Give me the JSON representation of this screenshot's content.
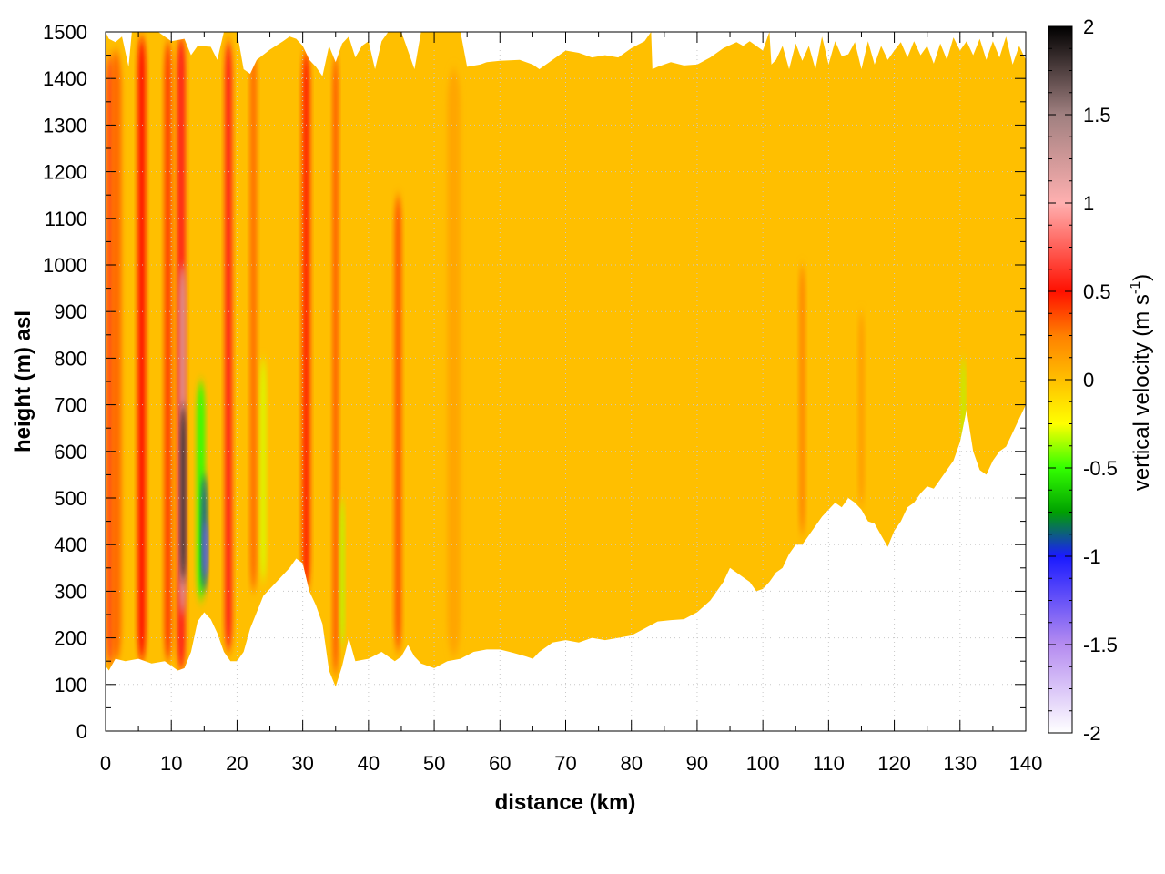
{
  "chart_data": {
    "type": "heatmap",
    "title": "",
    "xlabel": "distance (km)",
    "ylabel": "height (m) asl",
    "xlim": [
      0,
      140
    ],
    "ylim": [
      0,
      1500
    ],
    "x_ticks": [
      "0",
      "10",
      "20",
      "30",
      "40",
      "50",
      "60",
      "70",
      "80",
      "90",
      "100",
      "110",
      "120",
      "130",
      "140"
    ],
    "y_ticks": [
      "0",
      "100",
      "200",
      "300",
      "400",
      "500",
      "600",
      "700",
      "800",
      "900",
      "1000",
      "1100",
      "1200",
      "1300",
      "1400",
      "1500"
    ],
    "grid": true,
    "colorbar": {
      "label_prefix": "vertical velocity (m s",
      "label_sup": "-1",
      "label_suffix": ")",
      "range": [
        -2,
        2
      ],
      "tick_labels": [
        "2",
        "1.5",
        "1",
        "0.5",
        "0",
        "-0.5",
        "-1",
        "-1.5",
        "-2"
      ],
      "colors": [
        {
          "v": -2.0,
          "c": "#ffffff"
        },
        {
          "v": -1.5,
          "c": "#b58cf0"
        },
        {
          "v": -1.0,
          "c": "#1a1aff"
        },
        {
          "v": -0.75,
          "c": "#00a000"
        },
        {
          "v": -0.5,
          "c": "#33ff00"
        },
        {
          "v": -0.25,
          "c": "#ffff00"
        },
        {
          "v": 0.0,
          "c": "#ffbf00"
        },
        {
          "v": 0.25,
          "c": "#ff8000"
        },
        {
          "v": 0.5,
          "c": "#ff1000"
        },
        {
          "v": 1.0,
          "c": "#ffb0b0"
        },
        {
          "v": 1.5,
          "c": "#a08080"
        },
        {
          "v": 2.0,
          "c": "#000000"
        }
      ]
    },
    "field_top": [
      [
        0,
        1500
      ],
      [
        0.5,
        1485
      ],
      [
        1.5,
        1478
      ],
      [
        2.5,
        1490
      ],
      [
        3.5,
        1425
      ],
      [
        4,
        1500
      ],
      [
        8,
        1500
      ],
      [
        10,
        1480
      ],
      [
        12,
        1485
      ],
      [
        13,
        1450
      ],
      [
        14,
        1470
      ],
      [
        16,
        1468
      ],
      [
        17,
        1440
      ],
      [
        18,
        1500
      ],
      [
        20,
        1500
      ],
      [
        21,
        1420
      ],
      [
        22,
        1410
      ],
      [
        23,
        1440
      ],
      [
        25,
        1462
      ],
      [
        27,
        1480
      ],
      [
        28,
        1490
      ],
      [
        29,
        1485
      ],
      [
        30,
        1470
      ],
      [
        31,
        1440
      ],
      [
        32,
        1425
      ],
      [
        33,
        1405
      ],
      [
        34,
        1470
      ],
      [
        35,
        1435
      ],
      [
        36,
        1475
      ],
      [
        37,
        1490
      ],
      [
        38,
        1445
      ],
      [
        39,
        1470
      ],
      [
        40,
        1480
      ],
      [
        41,
        1420
      ],
      [
        42,
        1480
      ],
      [
        43,
        1500
      ],
      [
        45,
        1500
      ],
      [
        47,
        1420
      ],
      [
        48,
        1500
      ],
      [
        54,
        1500
      ],
      [
        55,
        1425
      ],
      [
        57,
        1430
      ],
      [
        58,
        1435
      ],
      [
        60,
        1438
      ],
      [
        63,
        1440
      ],
      [
        65,
        1430
      ],
      [
        66,
        1420
      ],
      [
        68,
        1440
      ],
      [
        70,
        1460
      ],
      [
        72,
        1455
      ],
      [
        74,
        1445
      ],
      [
        76,
        1450
      ],
      [
        78,
        1445
      ],
      [
        80,
        1465
      ],
      [
        82,
        1480
      ],
      [
        83,
        1500
      ],
      [
        83.2,
        1420
      ],
      [
        84,
        1425
      ],
      [
        86,
        1435
      ],
      [
        88,
        1428
      ],
      [
        90,
        1430
      ],
      [
        92,
        1445
      ],
      [
        94,
        1465
      ],
      [
        96,
        1478
      ],
      [
        97,
        1470
      ],
      [
        98,
        1480
      ],
      [
        100,
        1460
      ],
      [
        101,
        1500
      ],
      [
        101.3,
        1430
      ],
      [
        102,
        1440
      ],
      [
        103,
        1470
      ],
      [
        104,
        1420
      ],
      [
        105,
        1475
      ],
      [
        106,
        1438
      ],
      [
        107,
        1470
      ],
      [
        108,
        1420
      ],
      [
        109,
        1490
      ],
      [
        110,
        1430
      ],
      [
        111,
        1480
      ],
      [
        112,
        1448
      ],
      [
        113,
        1452
      ],
      [
        114,
        1478
      ],
      [
        115,
        1420
      ],
      [
        116,
        1480
      ],
      [
        117,
        1430
      ],
      [
        118,
        1470
      ],
      [
        119,
        1440
      ],
      [
        120,
        1460
      ],
      [
        121,
        1478
      ],
      [
        122,
        1445
      ],
      [
        123,
        1480
      ],
      [
        124,
        1450
      ],
      [
        125,
        1470
      ],
      [
        126,
        1432
      ],
      [
        127,
        1475
      ],
      [
        128,
        1440
      ],
      [
        129,
        1488
      ],
      [
        130,
        1460
      ],
      [
        131,
        1480
      ],
      [
        132,
        1450
      ],
      [
        133,
        1485
      ],
      [
        134,
        1440
      ],
      [
        135,
        1480
      ],
      [
        136,
        1445
      ],
      [
        137,
        1490
      ],
      [
        138,
        1430
      ],
      [
        139,
        1470
      ],
      [
        140,
        1440
      ]
    ],
    "field_bottom": [
      [
        0,
        140
      ],
      [
        0.5,
        130
      ],
      [
        1.5,
        155
      ],
      [
        3,
        150
      ],
      [
        5,
        155
      ],
      [
        7,
        145
      ],
      [
        9,
        150
      ],
      [
        10,
        140
      ],
      [
        11,
        130
      ],
      [
        12,
        135
      ],
      [
        13,
        170
      ],
      [
        14,
        235
      ],
      [
        15,
        255
      ],
      [
        16,
        240
      ],
      [
        17,
        210
      ],
      [
        18,
        170
      ],
      [
        19,
        150
      ],
      [
        20,
        150
      ],
      [
        21,
        170
      ],
      [
        22,
        220
      ],
      [
        24,
        290
      ],
      [
        26,
        320
      ],
      [
        28,
        350
      ],
      [
        29,
        370
      ],
      [
        30,
        360
      ],
      [
        31,
        300
      ],
      [
        32,
        270
      ],
      [
        33,
        230
      ],
      [
        34,
        130
      ],
      [
        35,
        95
      ],
      [
        36,
        140
      ],
      [
        37,
        200
      ],
      [
        38,
        150
      ],
      [
        40,
        155
      ],
      [
        42,
        170
      ],
      [
        43,
        160
      ],
      [
        44,
        150
      ],
      [
        45,
        160
      ],
      [
        46,
        185
      ],
      [
        47,
        160
      ],
      [
        48,
        145
      ],
      [
        50,
        135
      ],
      [
        52,
        150
      ],
      [
        54,
        155
      ],
      [
        56,
        170
      ],
      [
        58,
        175
      ],
      [
        60,
        175
      ],
      [
        62,
        168
      ],
      [
        64,
        160
      ],
      [
        65,
        155
      ],
      [
        66,
        170
      ],
      [
        68,
        190
      ],
      [
        70,
        195
      ],
      [
        72,
        190
      ],
      [
        74,
        200
      ],
      [
        76,
        195
      ],
      [
        78,
        200
      ],
      [
        80,
        205
      ],
      [
        82,
        220
      ],
      [
        84,
        235
      ],
      [
        86,
        238
      ],
      [
        88,
        240
      ],
      [
        90,
        255
      ],
      [
        92,
        280
      ],
      [
        94,
        320
      ],
      [
        95,
        350
      ],
      [
        96,
        340
      ],
      [
        98,
        320
      ],
      [
        99,
        300
      ],
      [
        100,
        305
      ],
      [
        101,
        320
      ],
      [
        102,
        340
      ],
      [
        103,
        350
      ],
      [
        104,
        380
      ],
      [
        105,
        400
      ],
      [
        106,
        400
      ],
      [
        107,
        420
      ],
      [
        108,
        440
      ],
      [
        109,
        460
      ],
      [
        110,
        475
      ],
      [
        111,
        490
      ],
      [
        112,
        480
      ],
      [
        113,
        500
      ],
      [
        114,
        490
      ],
      [
        115,
        475
      ],
      [
        116,
        450
      ],
      [
        117,
        445
      ],
      [
        118,
        420
      ],
      [
        119,
        395
      ],
      [
        120,
        430
      ],
      [
        121,
        450
      ],
      [
        122,
        480
      ],
      [
        123,
        490
      ],
      [
        124,
        510
      ],
      [
        125,
        525
      ],
      [
        126,
        520
      ],
      [
        127,
        540
      ],
      [
        128,
        560
      ],
      [
        129,
        580
      ],
      [
        130,
        620
      ],
      [
        131,
        690
      ],
      [
        132,
        600
      ],
      [
        133,
        560
      ],
      [
        134,
        550
      ],
      [
        135,
        580
      ],
      [
        136,
        600
      ],
      [
        137,
        610
      ],
      [
        138,
        640
      ],
      [
        139,
        670
      ],
      [
        140,
        700
      ]
    ],
    "features": [
      {
        "x": 0.7,
        "w": 0.9,
        "y0": 140,
        "y1": 1450,
        "v": 0.6,
        "note": ""
      },
      {
        "x": 1.6,
        "w": 1.6,
        "y0": 150,
        "y1": 1460,
        "v": 0.3
      },
      {
        "x": 5.5,
        "w": 1.2,
        "y0": 150,
        "y1": 1490,
        "v": 0.5
      },
      {
        "x": 9.5,
        "w": 1.1,
        "y0": 150,
        "y1": 1480,
        "v": 0.4
      },
      {
        "x": 11.5,
        "w": 1.3,
        "y0": 130,
        "y1": 1490,
        "v": 0.55
      },
      {
        "x": 11.7,
        "w": 0.9,
        "y0": 250,
        "y1": 1000,
        "v": 1.2
      },
      {
        "x": 11.8,
        "w": 0.7,
        "y0": 320,
        "y1": 700,
        "v": 1.9
      },
      {
        "x": 14.5,
        "w": 1.2,
        "y0": 280,
        "y1": 750,
        "v": -0.5
      },
      {
        "x": 15.0,
        "w": 0.8,
        "y0": 300,
        "y1": 550,
        "v": -0.9
      },
      {
        "x": 15.2,
        "w": 0.6,
        "y0": 330,
        "y1": 450,
        "v": -1.3
      },
      {
        "x": 18.7,
        "w": 1.1,
        "y0": 170,
        "y1": 1480,
        "v": 0.55
      },
      {
        "x": 22.5,
        "w": 1.0,
        "y0": 300,
        "y1": 1470,
        "v": 0.3
      },
      {
        "x": 24.0,
        "w": 0.8,
        "y0": 320,
        "y1": 800,
        "v": -0.3
      },
      {
        "x": 30.5,
        "w": 1.2,
        "y0": 300,
        "y1": 1460,
        "v": 0.45
      },
      {
        "x": 35.0,
        "w": 0.8,
        "y0": 120,
        "y1": 1450,
        "v": 0.35
      },
      {
        "x": 36.0,
        "w": 0.6,
        "y0": 180,
        "y1": 500,
        "v": -0.35
      },
      {
        "x": 44.5,
        "w": 1.0,
        "y0": 170,
        "y1": 1150,
        "v": 0.35
      },
      {
        "x": 53.0,
        "w": 2.0,
        "y0": 160,
        "y1": 1420,
        "v": 0.1
      },
      {
        "x": 106.0,
        "w": 0.8,
        "y0": 420,
        "y1": 1000,
        "v": 0.25
      },
      {
        "x": 115.0,
        "w": 0.8,
        "y0": 480,
        "y1": 900,
        "v": 0.15
      },
      {
        "x": 130.5,
        "w": 0.6,
        "y0": 610,
        "y1": 800,
        "v": -0.35
      }
    ]
  }
}
